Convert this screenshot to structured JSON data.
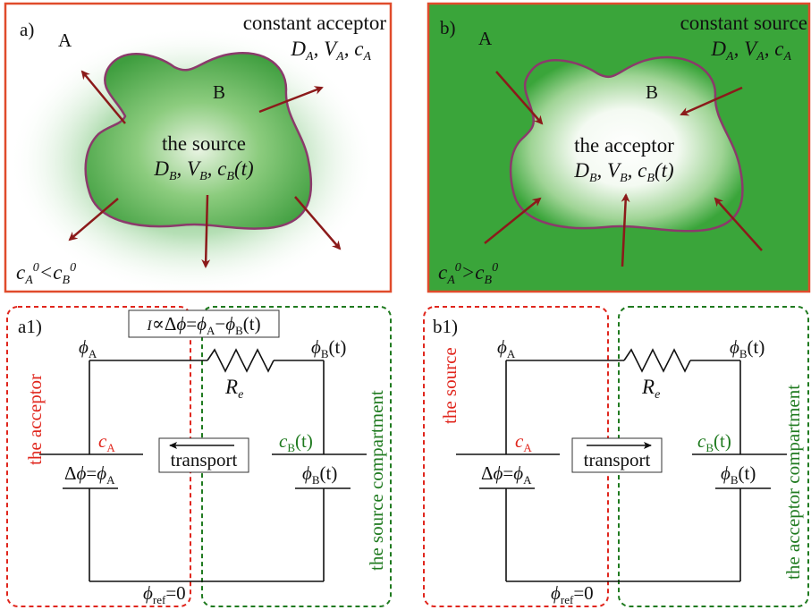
{
  "colors": {
    "panel_border": "#e04b2b",
    "green": "#3aa53a",
    "blob_edge": "#8b3a6b",
    "arrow": "#8b1a1a",
    "red_dash": "#e0261d",
    "green_dash": "#1f7a1f"
  },
  "panel_a": {
    "tag": "a)",
    "region_a": "A",
    "region_b": "B",
    "corner_title": "constant acceptor",
    "corner_params": "D_A, V_A, c_A",
    "center_title": "the source",
    "center_params": "D_B, V_B, c_B(t)",
    "condition": "c_A^0<c_B^0"
  },
  "panel_b": {
    "tag": "b)",
    "region_a": "A",
    "region_b": "B",
    "corner_title": "constant source",
    "corner_params": "D_A, V_A, c_A",
    "center_title": "the acceptor",
    "center_params": "D_B, V_B, c_B(t)",
    "condition": "c_A^0>c_B^0"
  },
  "circuit_a1": {
    "tag": "a1)",
    "formula": "I∝Δφ=φA−φB(t)",
    "phi_a": "φA",
    "phi_b_t": "φB(t)",
    "resistor": "Re",
    "left_label": "the acceptor",
    "right_label": "the source compartment",
    "c_a": "cA",
    "c_b_t": "cB(t)",
    "delta_phi": "Δφ=φA",
    "phi_b_lower": "φB(t)",
    "transport": "transport",
    "transport_direction": "left",
    "ground": "φref=0"
  },
  "circuit_b1": {
    "tag": "b1)",
    "phi_a": "φA",
    "phi_b_t": "φB(t)",
    "resistor": "Re",
    "left_label": "the source",
    "right_label": "the acceptor compartment",
    "c_a": "cA",
    "c_b_t": "cB(t)",
    "delta_phi": "Δφ=φA",
    "phi_b_lower": "φB(t)",
    "transport": "transport",
    "transport_direction": "right",
    "ground": "φref=0"
  }
}
